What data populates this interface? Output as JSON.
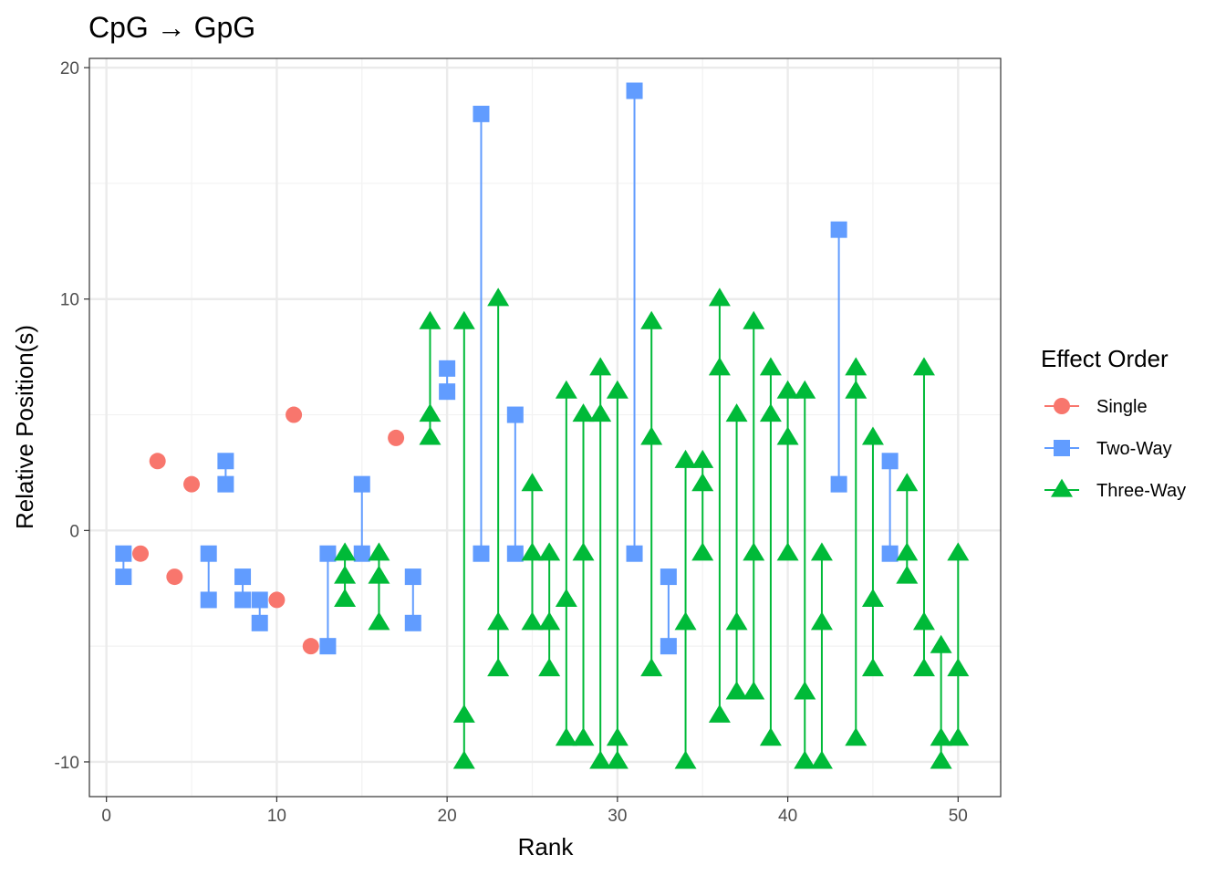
{
  "chart_data": {
    "type": "scatter",
    "title": "CpG → GpG",
    "xlabel": "Rank",
    "ylabel": "Relative Position(s)",
    "xlim": [
      -1,
      52.5
    ],
    "ylim": [
      -11.5,
      20.4
    ],
    "x_ticks": [
      0,
      10,
      20,
      30,
      40,
      50
    ],
    "y_ticks": [
      -10,
      0,
      10,
      20
    ],
    "grid": true,
    "legend": {
      "title": "Effect Order",
      "position": "right"
    },
    "series": [
      {
        "name": "Single",
        "color": "#F8766D",
        "shape": "circle",
        "groups": [
          {
            "x": 2,
            "y": [
              -1
            ]
          },
          {
            "x": 3,
            "y": [
              3
            ]
          },
          {
            "x": 4,
            "y": [
              -2
            ]
          },
          {
            "x": 5,
            "y": [
              2
            ]
          },
          {
            "x": 10,
            "y": [
              -3
            ]
          },
          {
            "x": 11,
            "y": [
              5
            ]
          },
          {
            "x": 12,
            "y": [
              -5
            ]
          },
          {
            "x": 17,
            "y": [
              4
            ]
          }
        ]
      },
      {
        "name": "Two-Way",
        "color": "#619CFF",
        "shape": "square",
        "groups": [
          {
            "x": 1,
            "y": [
              -1,
              -2
            ]
          },
          {
            "x": 6,
            "y": [
              -1,
              -3
            ]
          },
          {
            "x": 7,
            "y": [
              3,
              2
            ]
          },
          {
            "x": 8,
            "y": [
              -2,
              -3
            ]
          },
          {
            "x": 9,
            "y": [
              -3,
              -4
            ]
          },
          {
            "x": 13,
            "y": [
              -1,
              -5
            ]
          },
          {
            "x": 15,
            "y": [
              2,
              -1
            ]
          },
          {
            "x": 18,
            "y": [
              -2,
              -4
            ]
          },
          {
            "x": 20,
            "y": [
              7,
              6
            ]
          },
          {
            "x": 22,
            "y": [
              18,
              -1
            ]
          },
          {
            "x": 24,
            "y": [
              5,
              -1
            ]
          },
          {
            "x": 31,
            "y": [
              19,
              -1
            ]
          },
          {
            "x": 33,
            "y": [
              -2,
              -5
            ]
          },
          {
            "x": 43,
            "y": [
              13,
              2
            ]
          },
          {
            "x": 46,
            "y": [
              3,
              -1
            ]
          }
        ]
      },
      {
        "name": "Three-Way",
        "color": "#00BA38",
        "shape": "triangle",
        "groups": [
          {
            "x": 14,
            "y": [
              -1,
              -2,
              -3
            ]
          },
          {
            "x": 16,
            "y": [
              -1,
              -2,
              -4
            ]
          },
          {
            "x": 19,
            "y": [
              9,
              5,
              4
            ]
          },
          {
            "x": 21,
            "y": [
              9,
              -8,
              -10
            ]
          },
          {
            "x": 23,
            "y": [
              10,
              -4,
              -6
            ]
          },
          {
            "x": 25,
            "y": [
              2,
              -1,
              -4
            ]
          },
          {
            "x": 26,
            "y": [
              -1,
              -4,
              -6
            ]
          },
          {
            "x": 27,
            "y": [
              6,
              -3,
              -9
            ]
          },
          {
            "x": 28,
            "y": [
              5,
              -1,
              -9
            ]
          },
          {
            "x": 29,
            "y": [
              7,
              5,
              -10
            ]
          },
          {
            "x": 30,
            "y": [
              6,
              -9,
              -10
            ]
          },
          {
            "x": 32,
            "y": [
              9,
              4,
              -6
            ]
          },
          {
            "x": 34,
            "y": [
              3,
              -4,
              -10
            ]
          },
          {
            "x": 35,
            "y": [
              3,
              2,
              -1
            ]
          },
          {
            "x": 36,
            "y": [
              10,
              7,
              -8
            ]
          },
          {
            "x": 37,
            "y": [
              5,
              -4,
              -7
            ]
          },
          {
            "x": 38,
            "y": [
              9,
              -1,
              -7
            ]
          },
          {
            "x": 39,
            "y": [
              7,
              5,
              -9
            ]
          },
          {
            "x": 40,
            "y": [
              6,
              4,
              -1
            ]
          },
          {
            "x": 41,
            "y": [
              6,
              -7,
              -10
            ]
          },
          {
            "x": 42,
            "y": [
              -1,
              -4,
              -10
            ]
          },
          {
            "x": 44,
            "y": [
              7,
              6,
              -9
            ]
          },
          {
            "x": 45,
            "y": [
              4,
              -3,
              -6
            ]
          },
          {
            "x": 47,
            "y": [
              2,
              -1,
              -2
            ]
          },
          {
            "x": 48,
            "y": [
              7,
              -4,
              -6
            ]
          },
          {
            "x": 49,
            "y": [
              -5,
              -9,
              -10
            ]
          },
          {
            "x": 50,
            "y": [
              -1,
              -6,
              -9
            ]
          }
        ]
      }
    ]
  }
}
